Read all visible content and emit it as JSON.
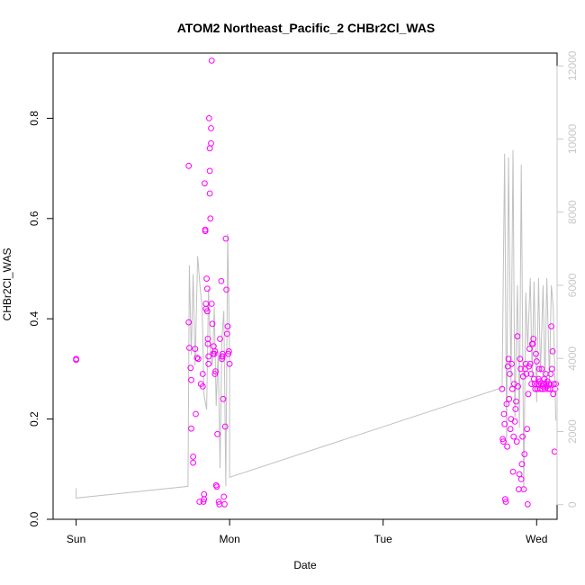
{
  "chart_data": {
    "type": "scatter",
    "title": "ATOM2 Northeast_Pacific_2 CHBr2Cl_WAS",
    "xlabel": "Date",
    "ylabel": "CHBr2Cl_WAS",
    "x_tick_labels": [
      "Sun",
      "Mon",
      "Tue",
      "Wed"
    ],
    "x_ticks_hours": [
      0,
      24,
      48,
      72
    ],
    "xlim_hours": [
      -3.6,
      75.2
    ],
    "ylim": [
      0,
      0.93
    ],
    "y_ticks": [
      0.0,
      0.2,
      0.4,
      0.6,
      0.8
    ],
    "y_tick_labels": [
      "0.0",
      "0.2",
      "0.4",
      "0.6",
      "0.8"
    ],
    "y2lim": [
      -400,
      12350
    ],
    "y2_ticks": [
      0,
      2000,
      4000,
      6000,
      8000,
      10000,
      12000
    ],
    "y2_tick_labels": [
      "0",
      "2000",
      "4000",
      "6000",
      "8000",
      "10000",
      "12000"
    ],
    "grid": false,
    "colors": {
      "points": "#ff00ff",
      "line": "#c0c0c0",
      "right_axis": "#c8c8c8",
      "frame": "#000000"
    },
    "series": [
      {
        "marker": "circle",
        "x_hours": [
          0,
          0,
          17.6,
          17.6,
          17.7,
          17.9,
          18.0,
          18.0,
          18.3,
          18.3,
          18.6,
          18.7,
          18.9,
          19.1,
          19.3,
          19.5,
          19.8,
          19.8,
          19.9,
          20.0,
          20.0,
          20.1,
          20.2,
          20.2,
          20.3,
          20.3,
          20.4,
          20.5,
          20.5,
          20.6,
          20.6,
          20.7,
          20.7,
          20.8,
          20.9,
          20.9,
          20.9,
          21.0,
          21.1,
          21.1,
          21.2,
          21.2,
          21.3,
          21.4,
          21.5,
          21.6,
          21.7,
          21.7,
          21.8,
          21.9,
          22.0,
          22.1,
          22.3,
          22.4,
          22.5,
          22.7,
          22.8,
          22.8,
          22.9,
          22.9,
          23.0,
          23.1,
          23.2,
          23.3,
          23.4,
          23.5,
          23.6,
          23.7,
          23.8,
          23.9,
          24.0
        ],
        "y": [
          0.32,
          0.318,
          0.705,
          0.393,
          0.342,
          0.302,
          0.278,
          0.181,
          0.125,
          0.113,
          0.34,
          0.21,
          0.322,
          0.32,
          0.035,
          0.27,
          0.265,
          0.29,
          0.035,
          0.05,
          0.04,
          0.67,
          0.578,
          0.575,
          0.43,
          0.42,
          0.48,
          0.46,
          0.415,
          0.36,
          0.35,
          0.31,
          0.325,
          0.8,
          0.65,
          0.74,
          0.695,
          0.6,
          0.75,
          0.78,
          0.915,
          0.43,
          0.39,
          0.33,
          0.345,
          0.33,
          0.29,
          0.335,
          0.295,
          0.068,
          0.065,
          0.17,
          0.035,
          0.03,
          0.36,
          0.475,
          0.32,
          0.325,
          0.325,
          0.33,
          0.24,
          0.045,
          0.03,
          0.185,
          0.56,
          0.458,
          0.37,
          0.385,
          0.33,
          0.335,
          0.31
        ]
      },
      {
        "marker": "circle",
        "x_hours": [
          66.6,
          66.7,
          66.8,
          66.9,
          67.0,
          67.1,
          67.2,
          67.3,
          67.4,
          67.5,
          67.6,
          67.7,
          67.8,
          67.9,
          68.0,
          68.1,
          68.2,
          68.3,
          68.4,
          68.5,
          68.6,
          68.7,
          68.8,
          68.9,
          69.0,
          69.1,
          69.2,
          69.3,
          69.4,
          69.5,
          69.6,
          69.7,
          69.8,
          69.9,
          70.0,
          70.1,
          70.2,
          70.3,
          70.4,
          70.5,
          70.6,
          70.7,
          70.8,
          70.9,
          71.0,
          71.1,
          71.2,
          71.3,
          71.4,
          71.5,
          71.6,
          71.7,
          71.8,
          71.9,
          72.0,
          72.1,
          72.2,
          72.3,
          72.4,
          72.5,
          72.6,
          72.7,
          72.8,
          72.9,
          73.0,
          73.1,
          73.2,
          73.3,
          73.4,
          73.5,
          73.6,
          73.7,
          73.8,
          73.9,
          74.0,
          74.1,
          74.2,
          74.3,
          74.4,
          74.5,
          74.6,
          74.7,
          74.8,
          74.9,
          75.0
        ],
        "y": [
          0.26,
          0.16,
          0.155,
          0.21,
          0.19,
          0.04,
          0.035,
          0.23,
          0.145,
          0.305,
          0.32,
          0.24,
          0.29,
          0.18,
          0.2,
          0.31,
          0.26,
          0.095,
          0.165,
          0.27,
          0.195,
          0.22,
          0.235,
          0.155,
          0.365,
          0.265,
          0.06,
          0.09,
          0.32,
          0.3,
          0.08,
          0.11,
          0.165,
          0.285,
          0.06,
          0.13,
          0.3,
          0.31,
          0.29,
          0.18,
          0.03,
          0.25,
          0.305,
          0.34,
          0.31,
          0.29,
          0.27,
          0.35,
          0.35,
          0.36,
          0.28,
          0.27,
          0.26,
          0.33,
          0.315,
          0.26,
          0.27,
          0.28,
          0.3,
          0.275,
          0.26,
          0.27,
          0.3,
          0.26,
          0.265,
          0.27,
          0.28,
          0.26,
          0.29,
          0.27,
          0.265,
          0.275,
          0.26,
          0.27,
          0.27,
          0.26,
          0.29,
          0.385,
          0.3,
          0.335,
          0.25,
          0.27,
          0.135,
          0.26,
          0.27
        ]
      },
      {
        "marker": "line",
        "axis": "right",
        "x_hours": [
          0,
          0,
          17.5,
          17.7,
          18.0,
          18.3,
          18.6,
          19.0,
          19.4,
          19.7,
          20.0,
          20.4,
          20.7,
          21.0,
          21.3,
          21.6,
          21.9,
          22.2,
          22.5,
          22.8,
          23.1,
          23.4,
          23.7,
          24.0,
          24.0,
          66.6,
          67.0,
          67.3,
          67.6,
          68.0,
          68.3,
          68.6,
          69.0,
          69.3,
          69.6,
          70.0,
          70.3,
          70.6,
          71.0,
          71.3,
          71.6,
          72.0,
          72.3,
          72.6,
          73.0,
          73.3,
          73.6,
          74.0,
          74.3,
          74.6,
          75.0
        ],
        "y2": [
          450,
          180,
          500,
          6550,
          4100,
          6300,
          3800,
          6800,
          5900,
          5400,
          3000,
          2600,
          5900,
          4200,
          3800,
          5400,
          2700,
          4200,
          1000,
          4600,
          5300,
          500,
          7400,
          4000,
          750,
          3200,
          9600,
          1700,
          9500,
          3200,
          9700,
          2400,
          6000,
          2100,
          9300,
          400,
          5800,
          4300,
          6200,
          3500,
          6100,
          2800,
          6200,
          3600,
          6000,
          3300,
          6200,
          3400,
          6000,
          5400,
          2300
        ]
      }
    ]
  }
}
